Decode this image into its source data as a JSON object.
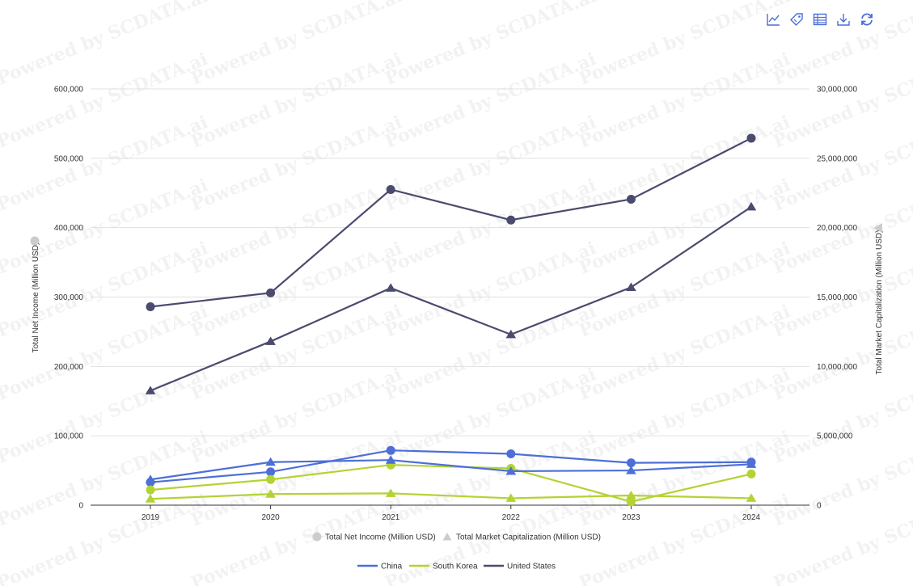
{
  "toolbar": {
    "items": [
      {
        "name": "line-chart-icon"
      },
      {
        "name": "tag-icon"
      },
      {
        "name": "table-icon"
      },
      {
        "name": "download-icon"
      },
      {
        "name": "refresh-icon"
      }
    ],
    "color": "#4a6ed8"
  },
  "watermark": "Powered by SCDATA.ai",
  "chart_data": {
    "type": "line",
    "x": [
      "2019",
      "2020",
      "2021",
      "2022",
      "2023",
      "2024"
    ],
    "left_axis": {
      "label": "Total Net Income (Million USD)",
      "ylim": [
        0,
        600000
      ],
      "ticks": [
        0,
        100000,
        200000,
        300000,
        400000,
        500000,
        600000
      ],
      "tick_labels": [
        "0",
        "100,000",
        "200,000",
        "300,000",
        "400,000",
        "500,000",
        "600,000"
      ],
      "marker": "circle"
    },
    "right_axis": {
      "label": "Total Market Capitalization (Million USD)",
      "ylim": [
        0,
        30000000
      ],
      "ticks": [
        0,
        5000000,
        10000000,
        15000000,
        20000000,
        25000000,
        30000000
      ],
      "tick_labels": [
        "0",
        "5,000,000",
        "10,000,000",
        "15,000,000",
        "20,000,000",
        "25,000,000",
        "30,000,000"
      ],
      "marker": "triangle"
    },
    "grid": true,
    "series": [
      {
        "name": "China",
        "metric": "Total Net Income (Million USD)",
        "axis": "left",
        "color": "#4d6fd6",
        "values": [
          33000,
          48000,
          79000,
          74000,
          61000,
          62000
        ]
      },
      {
        "name": "South Korea",
        "metric": "Total Net Income (Million USD)",
        "axis": "left",
        "color": "#b3d334",
        "values": [
          22000,
          37000,
          58000,
          53000,
          5000,
          45000
        ]
      },
      {
        "name": "United States",
        "metric": "Total Net Income (Million USD)",
        "axis": "left",
        "color": "#4a4b6e",
        "values": [
          286000,
          306000,
          455000,
          411000,
          441000,
          529000
        ]
      },
      {
        "name": "China",
        "metric": "Total Market Capitalization (Million USD)",
        "axis": "right",
        "color": "#4d6fd6",
        "values": [
          1850000,
          3100000,
          3250000,
          2450000,
          2500000,
          2950000
        ]
      },
      {
        "name": "South Korea",
        "metric": "Total Market Capitalization (Million USD)",
        "axis": "right",
        "color": "#b3d334",
        "values": [
          450000,
          800000,
          850000,
          500000,
          700000,
          500000
        ]
      },
      {
        "name": "United States",
        "metric": "Total Market Capitalization (Million USD)",
        "axis": "right",
        "color": "#4a4b6e",
        "values": [
          8250000,
          11800000,
          15650000,
          12300000,
          15700000,
          21500000
        ]
      }
    ],
    "metric_legend": [
      {
        "label": "Total Net Income (Million USD)",
        "marker": "circle"
      },
      {
        "label": "Total Market Capitalization (Million USD)",
        "marker": "triangle"
      }
    ],
    "series_legend": [
      {
        "label": "China",
        "color": "#4d6fd6"
      },
      {
        "label": "South Korea",
        "color": "#b3d334"
      },
      {
        "label": "United States",
        "color": "#4a4b6e"
      }
    ],
    "legend_position": "bottom",
    "legend_marker_color": "#cccccc"
  }
}
